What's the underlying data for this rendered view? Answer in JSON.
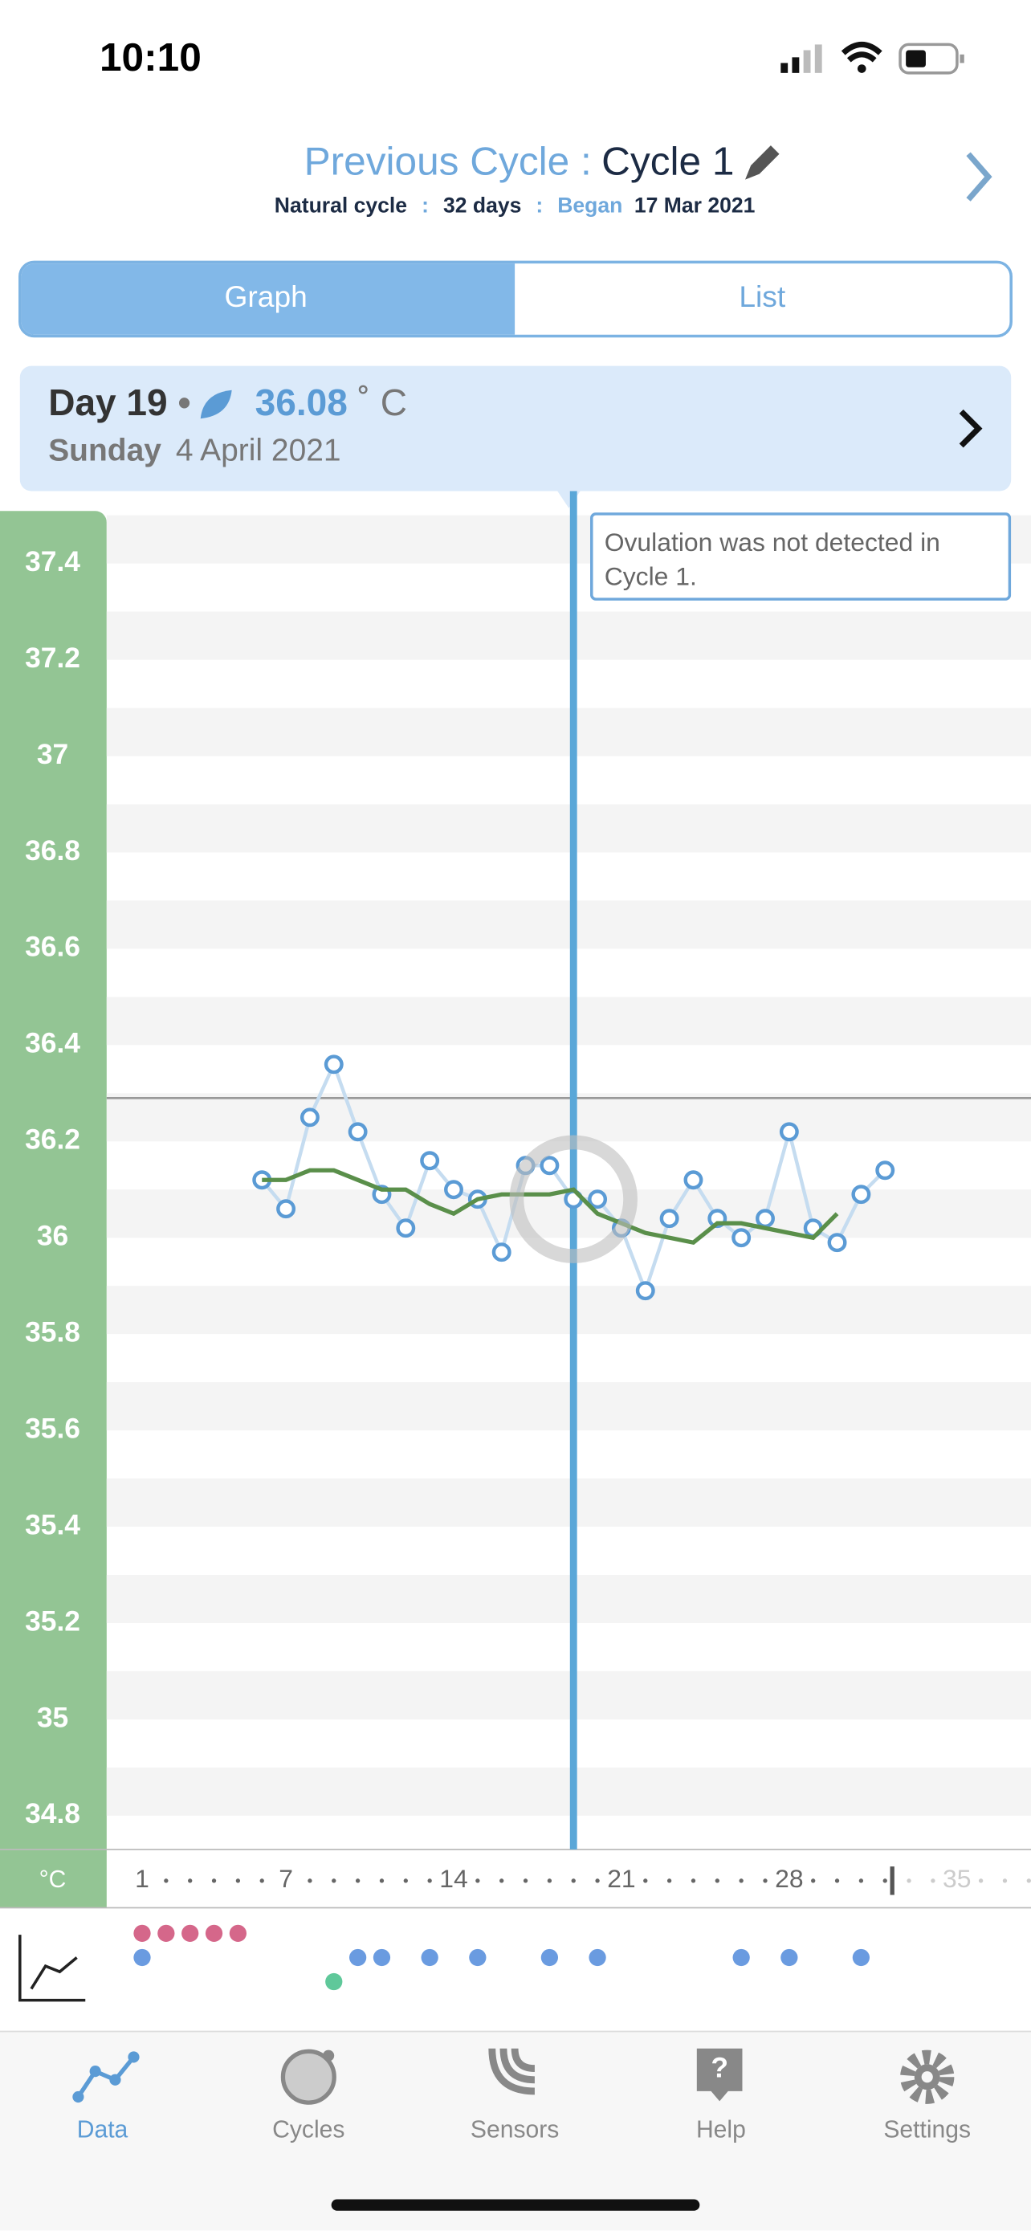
{
  "status_bar": {
    "time": "10:10"
  },
  "header": {
    "prefix": "Previous Cycle :",
    "cycle": "Cycle 1",
    "kind": "Natural cycle",
    "sep1": ":",
    "length": "32 days",
    "sep2": ":",
    "began_label": "Began",
    "began_date": "17 Mar 2021"
  },
  "tabs": [
    "Graph",
    "List"
  ],
  "day_card": {
    "day": "Day 19",
    "bullet": "•",
    "temperature": "36.08",
    "unit": "˚ C",
    "weekday": "Sunday",
    "date": "4 April 2021"
  },
  "note": "Ovulation was not detected in Cycle 1.",
  "chart_data": {
    "type": "line",
    "unit_label": "°C",
    "xlim": [
      -0.48,
      38.09
    ],
    "xticks": [
      1,
      7,
      14,
      21,
      28,
      35
    ],
    "ylim": [
      34.73,
      37.5
    ],
    "yticks": [
      34.8,
      35,
      35.2,
      35.4,
      35.6,
      35.8,
      36,
      36.2,
      36.4,
      36.6,
      36.8,
      37,
      37.2,
      37.4
    ],
    "reference_line": 36.29,
    "selected_day": 19,
    "cycle_length": 32,
    "series": [
      {
        "name": "Temperature",
        "color": "#5b9bd5",
        "x": [
          6,
          7,
          8,
          9,
          10,
          11,
          12,
          13,
          14,
          15,
          16,
          17,
          18,
          19,
          20,
          21,
          22,
          23,
          24,
          25,
          26,
          27,
          28,
          29,
          30,
          31,
          32
        ],
        "values": [
          36.12,
          36.06,
          36.25,
          36.36,
          36.22,
          36.09,
          36.02,
          36.16,
          36.1,
          36.08,
          35.97,
          36.15,
          36.15,
          36.08,
          36.08,
          36.02,
          35.89,
          36.04,
          36.12,
          36.04,
          36.0,
          36.04,
          36.22,
          36.02,
          35.99,
          36.09,
          36.14
        ]
      },
      {
        "name": "Trend",
        "color": "#5a8f4a",
        "x": [
          6,
          7,
          8,
          9,
          10,
          11,
          12,
          13,
          14,
          15,
          16,
          17,
          18,
          19,
          20,
          21,
          22,
          23,
          24,
          25,
          26,
          27,
          28,
          29,
          30
        ],
        "values": [
          36.12,
          36.12,
          36.14,
          36.14,
          36.12,
          36.1,
          36.1,
          36.07,
          36.05,
          36.08,
          36.09,
          36.09,
          36.09,
          36.1,
          36.05,
          36.03,
          36.01,
          36.0,
          35.99,
          36.03,
          36.03,
          36.02,
          36.01,
          36.0,
          36.05
        ]
      }
    ],
    "period_days": [
      1,
      2,
      3,
      4,
      5
    ],
    "sensor_days": [
      1,
      10,
      11,
      13,
      15,
      18,
      20,
      26,
      28,
      31
    ],
    "other_days": [
      9
    ]
  },
  "nav": [
    "Data",
    "Cycles",
    "Sensors",
    "Help",
    "Settings"
  ]
}
